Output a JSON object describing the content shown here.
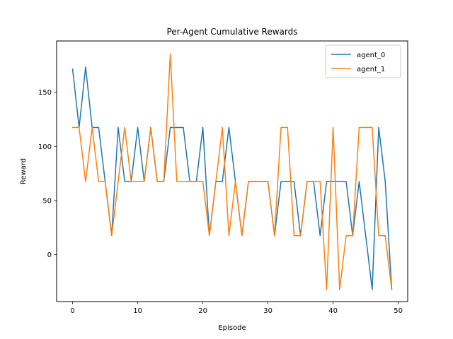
{
  "chart_data": {
    "type": "line",
    "title": "Per-Agent Cumulative Rewards",
    "xlabel": "Episode",
    "ylabel": "Reward",
    "xlim": [
      -2.45,
      51.45
    ],
    "ylim": [
      -43.5,
      197.5
    ],
    "xticks": [
      0,
      10,
      20,
      30,
      40,
      50
    ],
    "yticks": [
      0,
      50,
      100,
      150
    ],
    "grid": false,
    "legend": "top-right",
    "x": [
      0,
      1,
      2,
      3,
      4,
      5,
      6,
      7,
      8,
      9,
      10,
      11,
      12,
      13,
      14,
      15,
      16,
      17,
      18,
      19,
      20,
      21,
      22,
      23,
      24,
      25,
      26,
      27,
      28,
      29,
      30,
      31,
      32,
      33,
      34,
      35,
      36,
      37,
      38,
      39,
      40,
      41,
      42,
      43,
      44,
      45,
      46,
      47,
      48,
      49
    ],
    "series": [
      {
        "name": "agent_0",
        "color": "#1f77b4",
        "values": [
          171.5,
          117.5,
          173.5,
          117.5,
          117.5,
          67.5,
          17.5,
          117.5,
          67.5,
          67.5,
          117.5,
          67.5,
          117.5,
          67.5,
          67.5,
          117.5,
          117.5,
          117.5,
          67.5,
          67.5,
          117.5,
          17.5,
          67.5,
          67.5,
          117.5,
          67.5,
          17.5,
          67.5,
          67.5,
          67.5,
          67.5,
          17.5,
          67.5,
          67.5,
          67.5,
          17.5,
          67.5,
          67.5,
          17.5,
          67.5,
          67.5,
          67.5,
          67.5,
          17.5,
          67.5,
          17.5,
          -32.5,
          117.5,
          67.5,
          -32.5
        ]
      },
      {
        "name": "agent_1",
        "color": "#ff7f0e",
        "values": [
          117.5,
          117.5,
          67.5,
          117.5,
          67.5,
          67.5,
          17.5,
          67.5,
          117.5,
          67.5,
          67.5,
          67.5,
          117.5,
          67.5,
          67.5,
          185.5,
          67.5,
          67.5,
          67.5,
          67.5,
          67.5,
          17.5,
          67.5,
          117.5,
          17.5,
          67.5,
          17.5,
          67.5,
          67.5,
          67.5,
          67.5,
          17.5,
          117.5,
          117.5,
          17.5,
          17.5,
          67.5,
          67.5,
          67.5,
          -32.5,
          117.5,
          -32.5,
          17.5,
          17.5,
          117.5,
          117.5,
          117.5,
          17.5,
          17.5,
          -32.5
        ]
      }
    ]
  }
}
